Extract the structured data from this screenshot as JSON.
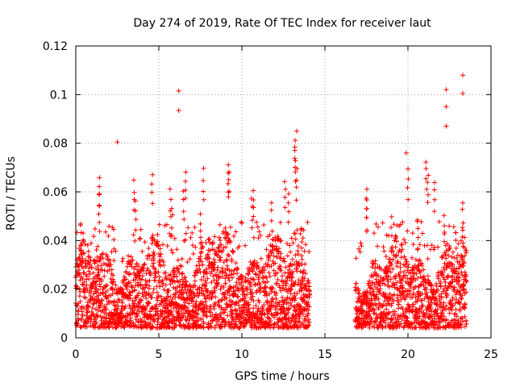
{
  "chart_data": {
    "type": "scatter",
    "title": "Day 274 of 2019, Rate Of TEC Index for receiver laut",
    "xlabel": "GPS time / hours",
    "ylabel": "ROTI / TECUs",
    "xlim": [
      0,
      25
    ],
    "ylim": [
      0,
      0.12
    ],
    "xticks": [
      0,
      5,
      10,
      15,
      20,
      25
    ],
    "xtick_labels": [
      "0",
      "5",
      "10",
      "15",
      "20",
      "25"
    ],
    "yticks": [
      0,
      0.02,
      0.04,
      0.06,
      0.08,
      0.1,
      0.12
    ],
    "ytick_labels": [
      "0",
      "0.02",
      "0.04",
      "0.06",
      "0.08",
      "0.1",
      "0.12"
    ],
    "grid": true,
    "marker": "plus",
    "series_color": "#ff0000",
    "data_gap": [
      14.1,
      16.8
    ],
    "notable_points": [
      {
        "x": 2.5,
        "y": 0.0805
      },
      {
        "x": 6.2,
        "y": 0.1015
      },
      {
        "x": 6.2,
        "y": 0.0935
      },
      {
        "x": 13.3,
        "y": 0.085
      },
      {
        "x": 19.9,
        "y": 0.076
      },
      {
        "x": 22.3,
        "y": 0.102
      },
      {
        "x": 22.3,
        "y": 0.095
      },
      {
        "x": 22.3,
        "y": 0.087
      },
      {
        "x": 23.3,
        "y": 0.108
      },
      {
        "x": 23.3,
        "y": 0.1005
      }
    ]
  }
}
